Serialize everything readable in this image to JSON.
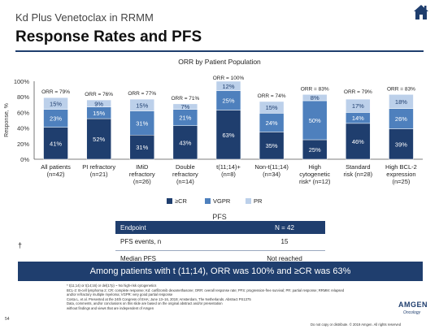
{
  "header": {
    "subtitle": "Kd Plus Venetoclax in RRMM",
    "title": "Response Rates and PFS"
  },
  "chart_data": {
    "type": "bar",
    "stacked": true,
    "title": "ORR by Patient Population",
    "ylabel": "Response, %",
    "ylim": [
      0,
      100
    ],
    "yticks": [
      "0%",
      "20%",
      "40%",
      "60%",
      "80%",
      "100%"
    ],
    "categories": [
      [
        "All patients",
        "(n=42)"
      ],
      [
        "PI refractory",
        "(n=21)"
      ],
      [
        "IMiD",
        "refractory",
        "(n=26)"
      ],
      [
        "Double",
        "refractory",
        "(n=14)"
      ],
      [
        "t(11;14)+",
        "(n=8)"
      ],
      [
        "Non-t(11;14)",
        "(n=34)"
      ],
      [
        "High",
        "cytogenetic",
        "risk* (n=12)"
      ],
      [
        "Standard",
        "risk (n=28)"
      ],
      [
        "High BCL-2",
        "expression",
        "(n=25)"
      ]
    ],
    "orr_labels": [
      "ORR = 79%",
      "ORR = 76%",
      "ORR = 77%",
      "ORR = 71%",
      "ORR = 100%",
      "ORR = 74%",
      "ORR = 83%",
      "ORR = 79%",
      "ORR = 83%"
    ],
    "orr_values": [
      79,
      76,
      77,
      71,
      100,
      74,
      83,
      79,
      83
    ],
    "series": [
      {
        "name": "≥CR",
        "color": "#1f3e6e",
        "values": [
          41,
          52,
          31,
          43,
          63,
          35,
          25,
          46,
          39
        ]
      },
      {
        "name": "VGPR",
        "color": "#4e80bd",
        "values": [
          23,
          15,
          31,
          21,
          25,
          24,
          50,
          14,
          26
        ]
      },
      {
        "name": "PR",
        "color": "#bcd0ea",
        "values": [
          15,
          9,
          15,
          7,
          12,
          15,
          8,
          17,
          18
        ]
      }
    ],
    "legend_position": "bottom"
  },
  "pfs": {
    "title": "PFS",
    "header": {
      "label": "Endpoint",
      "value": "N = 42"
    },
    "rows": [
      {
        "label": "PFS events, n",
        "value": "15"
      },
      {
        "label": "Median PFS",
        "value": "Not reached"
      }
    ],
    "dagger": "†"
  },
  "banner": "Among patients with t (11;14), ORR was 100% and ≥CR was 63%",
  "footnotes": [
    "* t(11;14) or t(14;16) or del(17p) ~ No high-risk cytogenetics",
    "BCL-2: B-cell lymphoma 2; CR: complete response; Kd: carfilzomib dexamethasone; ORR: overall response rate; PFS: progression-free survival; PR: partial response; RRMM: relapsed",
    "and/or refractory multiple myeloma; VGPR: very good partial response",
    "Costa L, et al. Presented at the 24th Congress of EHA; June 13–16, 2019; Amsterdam, The Netherlands. Abstract PS1375",
    "Data, comments, and/or conclusions on this slide are based on the original abstract and/or presentation",
    "without findings and views that are independent of Amgen"
  ],
  "page_number": "54",
  "disclaimer": "Do not copy or distribute. © 2019 Amgen. All rights reserved",
  "logo": {
    "name": "AMGEN",
    "tagline": "Oncology"
  }
}
